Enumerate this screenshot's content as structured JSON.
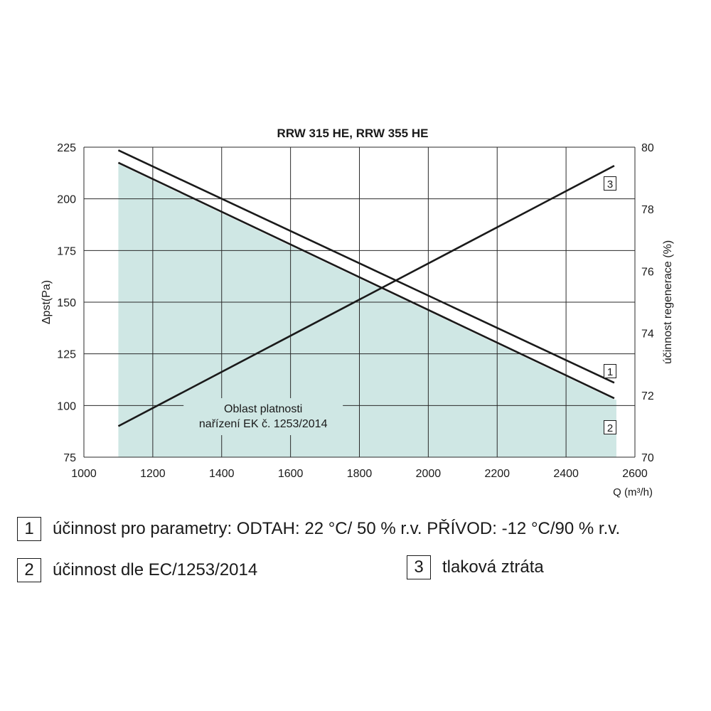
{
  "chart_data": {
    "type": "line",
    "title": "RRW 315 HE, RRW 355 HE",
    "xlabel": "Q (m³/h)",
    "ylabel_left": "Δpst(Pa)",
    "ylabel_right": "účinnost regenerace (%)",
    "xlim": [
      1000,
      2600
    ],
    "ylim_left": [
      75,
      225
    ],
    "ylim_right": [
      70,
      80
    ],
    "x_ticks": [
      1000,
      1200,
      1400,
      1600,
      1800,
      2000,
      2200,
      2400,
      2600
    ],
    "y_ticks_left": [
      75,
      100,
      125,
      150,
      175,
      200,
      225
    ],
    "y_ticks_right": [
      70,
      72,
      74,
      76,
      78,
      80
    ],
    "grid": true,
    "series": [
      {
        "marker": "1",
        "axis": "right",
        "x": [
          1100,
          2540
        ],
        "y": [
          79.9,
          72.4
        ]
      },
      {
        "marker": "2",
        "axis": "right",
        "x": [
          1100,
          2540
        ],
        "y": [
          79.5,
          71.9
        ]
      },
      {
        "marker": "3",
        "axis": "left",
        "x": [
          1100,
          2540
        ],
        "y": [
          90,
          216
        ]
      }
    ],
    "shaded_region": {
      "label_line1": "Oblast platnosti",
      "label_line2": "nařízení EK č. 1253/2014",
      "color": "#cfe7e4",
      "x": [
        1100,
        2540
      ],
      "y_right": [
        79.5,
        71.9
      ]
    }
  },
  "legend": {
    "item1": {
      "num": "1",
      "text": "účinnost pro parametry: ODTAH: 22 °C/ 50 % r.v. PŘÍVOD: -12 °C/90 % r.v."
    },
    "item2": {
      "num": "2",
      "text": "účinnost dle EC/1253/2014"
    },
    "item3": {
      "num": "3",
      "text": "tlaková ztráta"
    }
  }
}
